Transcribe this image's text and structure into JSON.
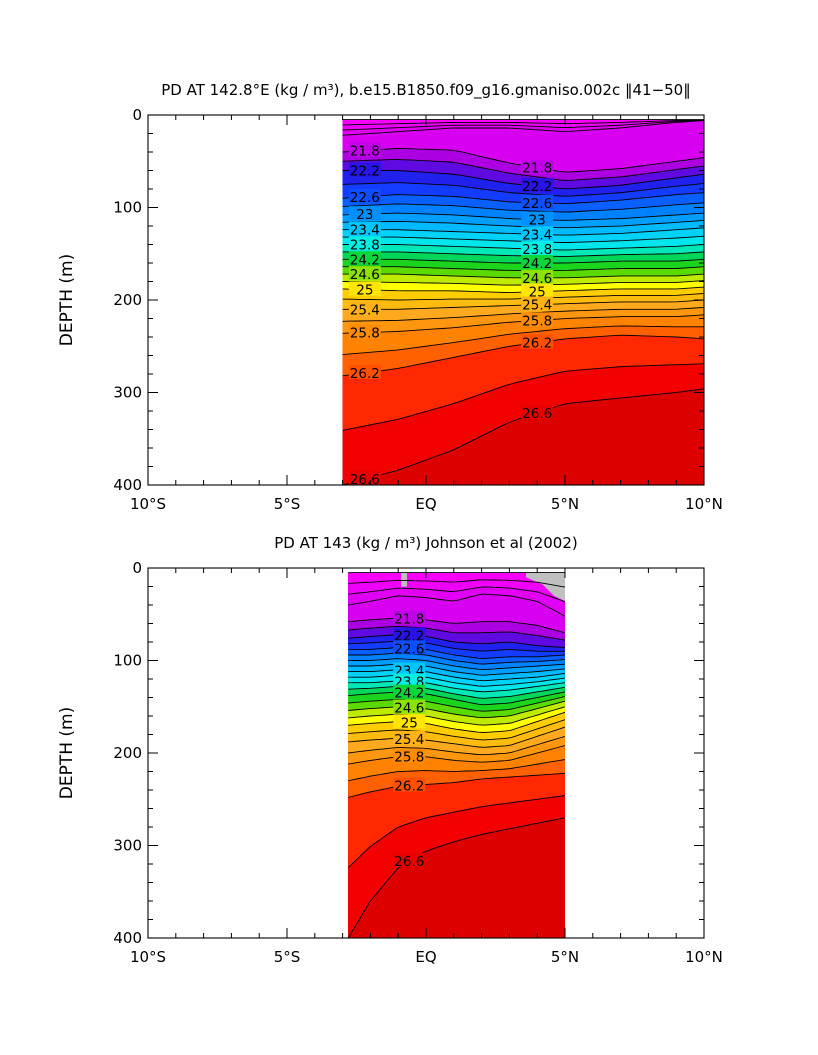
{
  "chart_data": [
    {
      "type": "contour",
      "title": "PD AT 142.8°E (kg / m³), b.e15.B1850.f09_g16.gmaniso.002c ‖41−50‖",
      "ylabel": "DEPTH (m)",
      "ylim": [
        0,
        400
      ],
      "yticks": [
        "0",
        "100",
        "200",
        "300",
        "400"
      ],
      "xticks": [
        "10°S",
        "5°S",
        "EQ",
        "5°N",
        "10°N"
      ],
      "xlim": [
        -10,
        10
      ],
      "data_xrange": [
        -3,
        10
      ],
      "data_ytop": 5,
      "contour_interval": 0.2,
      "contour_min": 21.0,
      "contour_max": 27.0,
      "contour_labels": [
        "21.8",
        "22.2",
        "22.6",
        "23",
        "23.4",
        "23.8",
        "24.2",
        "24.6",
        "25",
        "25.4",
        "25.8",
        "26.2",
        "26.6"
      ],
      "density_depths": {
        "x": [
          -3,
          -1,
          1,
          3,
          5,
          7,
          9,
          10
        ],
        "21.6": [
          22,
          18,
          14,
          14,
          18,
          14,
          8,
          6
        ],
        "21.8": [
          40,
          36,
          38,
          52,
          62,
          58,
          50,
          46
        ],
        "22.2": [
          60,
          60,
          64,
          74,
          80,
          76,
          68,
          64
        ],
        "22.6": [
          90,
          86,
          88,
          94,
          96,
          92,
          86,
          84
        ],
        "23.0": [
          108,
          106,
          108,
          112,
          114,
          112,
          108,
          106
        ],
        "23.4": [
          124,
          124,
          126,
          128,
          130,
          128,
          124,
          122
        ],
        "23.8": [
          140,
          140,
          142,
          144,
          146,
          144,
          142,
          140
        ],
        "24.2": [
          156,
          156,
          158,
          160,
          160,
          158,
          158,
          156
        ],
        "24.6": [
          172,
          172,
          174,
          176,
          176,
          174,
          174,
          172
        ],
        "25.0": [
          188,
          190,
          190,
          192,
          190,
          188,
          188,
          186
        ],
        "25.4": [
          210,
          210,
          208,
          206,
          204,
          202,
          202,
          200
        ],
        "25.8": [
          236,
          234,
          230,
          224,
          220,
          218,
          218,
          216
        ],
        "26.2": [
          282,
          274,
          262,
          250,
          242,
          238,
          240,
          242
        ],
        "26.6": [
          400,
          384,
          362,
          332,
          312,
          306,
          300,
          296
        ]
      }
    },
    {
      "type": "contour",
      "title": "PD AT 143 (kg / m³) Johnson et al (2002)",
      "ylabel": "DEPTH (m)",
      "ylim": [
        0,
        400
      ],
      "yticks": [
        "0",
        "100",
        "200",
        "300",
        "400"
      ],
      "xticks": [
        "10°S",
        "5°S",
        "EQ",
        "5°N",
        "10°N"
      ],
      "xlim": [
        -10,
        10
      ],
      "data_xrange": [
        -2.8,
        5
      ],
      "data_ytop": 5,
      "contour_interval": 0.2,
      "contour_min": 21.0,
      "contour_max": 27.0,
      "contour_labels": [
        "21.8",
        "22.2",
        "22.6",
        "23.4",
        "23.8",
        "24.2",
        "24.6",
        "25",
        "25.4",
        "25.8",
        "26.2",
        "26.6"
      ],
      "missing_color": "#bfbfbf",
      "density_depths": {
        "x": [
          -2.8,
          -2,
          -1,
          0,
          1,
          2,
          3,
          4,
          5
        ],
        "21.6": [
          40,
          36,
          30,
          32,
          36,
          28,
          30,
          36,
          52
        ],
        "21.8": [
          58,
          56,
          54,
          56,
          60,
          58,
          58,
          62,
          70
        ],
        "22.2": [
          76,
          74,
          72,
          74,
          80,
          82,
          80,
          84,
          86
        ],
        "22.6": [
          88,
          88,
          86,
          88,
          94,
          98,
          96,
          96,
          94
        ],
        "23.0": [
          100,
          100,
          98,
          100,
          106,
          110,
          108,
          106,
          104
        ],
        "23.4": [
          112,
          112,
          110,
          112,
          118,
          122,
          120,
          118,
          114
        ],
        "23.8": [
          124,
          124,
          122,
          124,
          130,
          134,
          132,
          128,
          124
        ],
        "24.2": [
          138,
          136,
          134,
          136,
          142,
          148,
          146,
          140,
          134
        ],
        "24.6": [
          154,
          152,
          150,
          152,
          158,
          162,
          160,
          152,
          144
        ],
        "25.0": [
          170,
          168,
          166,
          168,
          174,
          178,
          176,
          166,
          156
        ],
        "25.4": [
          188,
          186,
          184,
          186,
          190,
          194,
          192,
          182,
          172
        ],
        "25.8": [
          212,
          208,
          204,
          204,
          208,
          210,
          208,
          200,
          192
        ],
        "26.2": [
          248,
          242,
          236,
          234,
          232,
          228,
          226,
          224,
          222
        ],
        "26.6": [
          400,
          360,
          324,
          306,
          296,
          288,
          282,
          276,
          270
        ]
      }
    }
  ]
}
